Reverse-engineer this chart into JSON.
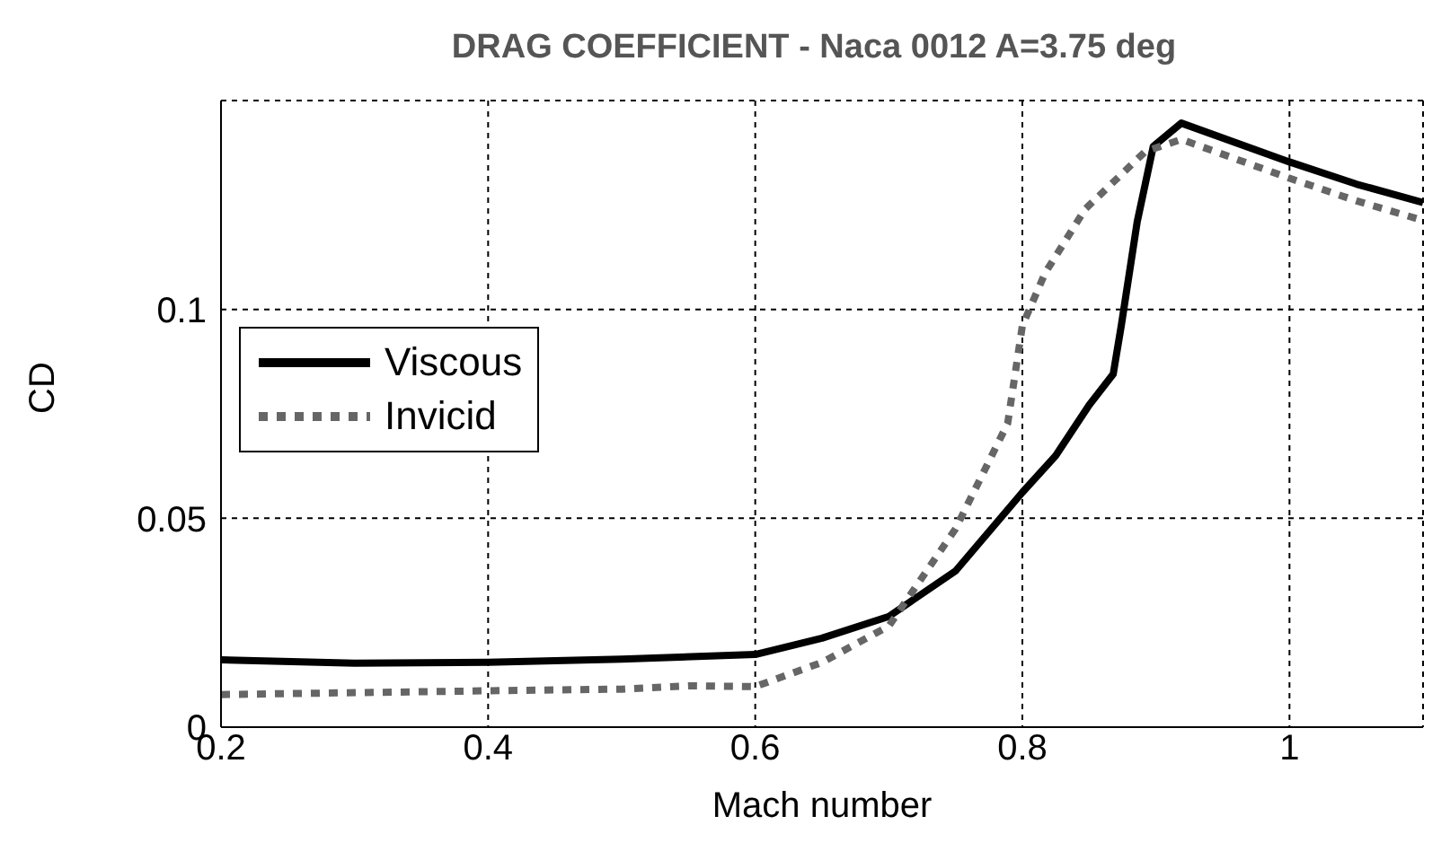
{
  "chart_data": {
    "type": "line",
    "title": "DRAG COEFFICIENT - Naca 0012 A=3.75 deg",
    "xlabel": "Mach number",
    "ylabel": "CD",
    "xlim": [
      0.2,
      1.1
    ],
    "xticks": [
      0.2,
      0.4,
      0.6,
      0.8,
      1
    ],
    "ylim": [
      0,
      0.15
    ],
    "yticks": [
      0,
      0.05,
      0.1
    ],
    "grid": true,
    "legend": "left",
    "marker": "none",
    "series": [
      {
        "name": "Viscous",
        "color": "#000000",
        "line_style": "solid",
        "x": [
          0.2,
          0.3,
          0.4,
          0.5,
          0.6,
          0.65,
          0.7,
          0.75,
          0.8,
          0.825,
          0.85,
          0.868,
          0.874,
          0.886,
          0.898,
          0.919,
          1.0,
          1.05,
          1.1
        ],
        "values": [
          0.0161,
          0.0153,
          0.0155,
          0.0163,
          0.0174,
          0.0213,
          0.0265,
          0.0374,
          0.0562,
          0.065,
          0.0771,
          0.0845,
          0.096,
          0.121,
          0.139,
          0.1446,
          0.1353,
          0.13,
          0.1256
        ]
      },
      {
        "name": "Invicid",
        "color": "#666666",
        "line_style": "dotted",
        "x": [
          0.2,
          0.4,
          0.5,
          0.55,
          0.6,
          0.65,
          0.7,
          0.75,
          0.789,
          0.8,
          0.817,
          0.847,
          0.892,
          0.919,
          1.0,
          1.05,
          1.1
        ],
        "values": [
          0.0078,
          0.0087,
          0.0091,
          0.0099,
          0.0097,
          0.0155,
          0.0242,
          0.0475,
          0.0727,
          0.0961,
          0.1087,
          0.124,
          0.1378,
          0.1407,
          0.1314,
          0.126,
          0.1213
        ]
      }
    ]
  }
}
